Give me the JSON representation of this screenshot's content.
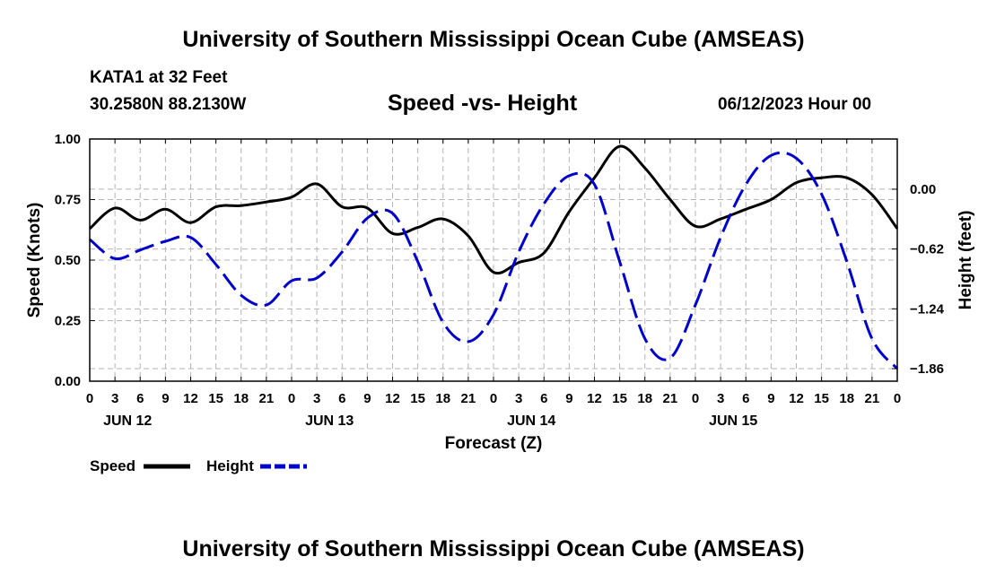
{
  "title_top": "University of Southern Mississippi Ocean Cube (AMSEAS)",
  "title_bottom": "University of Southern Mississippi Ocean Cube (AMSEAS)",
  "station": "KATA1 at 32 Feet",
  "coords": "30.2580N  88.2130W",
  "subtitle": "Speed -vs- Height",
  "datetime": "06/12/2023 Hour 00",
  "chart_data": {
    "type": "line",
    "xlabel": "Forecast (Z)",
    "ylabel_left": "Speed (Knots)",
    "ylabel_right": "Height (feet)",
    "x_hours": [
      0,
      96
    ],
    "x_tick_labels": [
      "0",
      "3",
      "6",
      "9",
      "12",
      "15",
      "18",
      "21",
      "0",
      "3",
      "6",
      "9",
      "12",
      "15",
      "18",
      "21",
      "0",
      "3",
      "6",
      "9",
      "12",
      "15",
      "18",
      "21",
      "0",
      "3",
      "6",
      "9",
      "12",
      "15",
      "18",
      "21",
      "0"
    ],
    "date_labels": [
      {
        "label": "JUN 12",
        "hour": 4.5
      },
      {
        "label": "JUN 13",
        "hour": 28.5
      },
      {
        "label": "JUN 14",
        "hour": 52.5
      },
      {
        "label": "JUN 15",
        "hour": 76.5
      }
    ],
    "left_axis": {
      "ylim": [
        0,
        1
      ],
      "ticks": [
        0,
        0.25,
        0.5,
        0.75,
        1
      ],
      "tick_labels": [
        "0.00",
        "0.25",
        "0.50",
        "0.75",
        "1.00"
      ]
    },
    "right_axis": {
      "ylim": [
        -1.99,
        0.52
      ],
      "ticks": [
        0,
        -0.62,
        -1.24,
        -1.86
      ],
      "tick_labels": [
        "0.00",
        "−0.62",
        "−1.24",
        "−1.86"
      ]
    },
    "grid": true,
    "legend_placement": "bottom-left",
    "series": [
      {
        "name": "Speed",
        "axis": "left",
        "color": "#000000",
        "dash": "solid",
        "x": [
          0,
          3,
          6,
          9,
          12,
          15,
          18,
          21,
          24,
          27,
          30,
          33,
          36,
          39,
          42,
          45,
          48,
          51,
          54,
          57,
          60,
          63,
          66,
          69,
          72,
          75,
          78,
          81,
          84,
          87,
          90,
          93,
          96
        ],
        "values": [
          0.63,
          0.715,
          0.665,
          0.71,
          0.655,
          0.72,
          0.725,
          0.74,
          0.76,
          0.815,
          0.72,
          0.715,
          0.61,
          0.635,
          0.67,
          0.6,
          0.45,
          0.49,
          0.53,
          0.7,
          0.84,
          0.97,
          0.88,
          0.75,
          0.64,
          0.67,
          0.71,
          0.75,
          0.82,
          0.84,
          0.84,
          0.77,
          0.63
        ]
      },
      {
        "name": "Height",
        "axis": "right",
        "color": "#0000cc",
        "dash": "dashed",
        "x": [
          0,
          3,
          6,
          9,
          12,
          15,
          18,
          21,
          24,
          27,
          30,
          33,
          36,
          39,
          42,
          45,
          48,
          51,
          54,
          57,
          60,
          63,
          66,
          69,
          72,
          75,
          78,
          81,
          84,
          87,
          90,
          93,
          96
        ],
        "values": [
          -0.52,
          -0.72,
          -0.63,
          -0.54,
          -0.5,
          -0.78,
          -1.1,
          -1.2,
          -0.95,
          -0.92,
          -0.65,
          -0.3,
          -0.25,
          -0.75,
          -1.38,
          -1.58,
          -1.3,
          -0.65,
          -0.15,
          0.14,
          0.05,
          -0.75,
          -1.55,
          -1.75,
          -1.2,
          -0.5,
          0.05,
          0.35,
          0.32,
          -0.05,
          -0.75,
          -1.55,
          -1.86
        ]
      }
    ]
  }
}
